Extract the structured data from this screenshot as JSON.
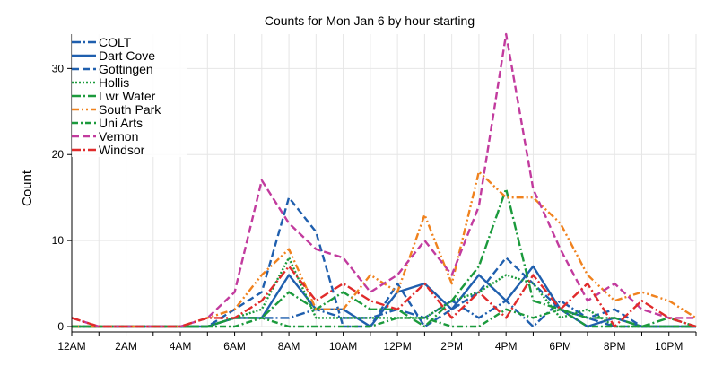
{
  "chart_data": {
    "type": "line",
    "title": "Counts for Mon Jan 6 by hour starting",
    "xlabel": "",
    "ylabel": "Count",
    "xlim": [
      0,
      23
    ],
    "ylim": [
      0,
      34
    ],
    "x_ticks": [
      0,
      2,
      4,
      6,
      8,
      10,
      12,
      14,
      16,
      18,
      20,
      22
    ],
    "x_tick_labels": [
      "12AM",
      "2AM",
      "4AM",
      "6AM",
      "8AM",
      "10AM",
      "12PM",
      "2PM",
      "4PM",
      "6PM",
      "8PM",
      "10PM"
    ],
    "y_ticks": [
      0,
      10,
      20,
      30
    ],
    "y_tick_labels": [
      "0",
      "10",
      "20",
      "30"
    ],
    "grid": true,
    "legend_position": "top-left",
    "x": [
      0,
      1,
      2,
      3,
      4,
      5,
      6,
      7,
      8,
      9,
      10,
      11,
      12,
      13,
      14,
      15,
      16,
      17,
      18,
      19,
      20,
      21,
      22,
      23
    ],
    "series": [
      {
        "name": "COLT",
        "color": "#1f5fae",
        "dash": "dashdot",
        "values": [
          0,
          0,
          0,
          0,
          0,
          0,
          1,
          1,
          1,
          2,
          1,
          1,
          2,
          1,
          3,
          1,
          3,
          0,
          3,
          1,
          0,
          0,
          0,
          0
        ]
      },
      {
        "name": "Dart Cove",
        "color": "#1f5fae",
        "dash": "solid",
        "values": [
          0,
          0,
          0,
          0,
          0,
          0,
          1,
          1,
          6,
          2,
          2,
          0,
          4,
          5,
          2,
          6,
          3,
          7,
          2,
          0,
          1,
          0,
          0,
          0
        ]
      },
      {
        "name": "Gottingen",
        "color": "#1f5fae",
        "dash": "dashed",
        "values": [
          0,
          0,
          0,
          0,
          0,
          0,
          2,
          4,
          15,
          11,
          0,
          0,
          5,
          0,
          2,
          4,
          8,
          5,
          2,
          1,
          2,
          0,
          0,
          0
        ]
      },
      {
        "name": "Hollis",
        "color": "#1b9a3c",
        "dash": "dotted",
        "values": [
          0,
          0,
          0,
          0,
          0,
          0,
          1,
          2,
          8,
          1,
          1,
          1,
          1,
          1,
          3,
          4,
          6,
          5,
          1,
          2,
          0,
          0,
          0,
          0
        ]
      },
      {
        "name": "Lwr Water",
        "color": "#1b9a3c",
        "dash": "dashdot",
        "values": [
          0,
          0,
          0,
          0,
          0,
          0,
          1,
          1,
          4,
          2,
          4,
          2,
          2,
          0,
          3,
          7,
          16,
          3,
          2,
          1,
          1,
          0,
          1,
          0
        ]
      },
      {
        "name": "South Park",
        "color": "#f0821e",
        "dash": "dashdotdot",
        "values": [
          0,
          0,
          0,
          0,
          0,
          1,
          2,
          6,
          9,
          2,
          2,
          6,
          4,
          13,
          5,
          18,
          15,
          15,
          12,
          6,
          3,
          4,
          3,
          1
        ]
      },
      {
        "name": "Uni Arts",
        "color": "#1b9a3c",
        "dash": "dashdot2",
        "values": [
          0,
          0,
          0,
          0,
          0,
          0,
          0,
          1,
          0,
          0,
          0,
          0,
          1,
          1,
          0,
          0,
          2,
          1,
          2,
          0,
          0,
          0,
          0,
          0
        ]
      },
      {
        "name": "Vernon",
        "color": "#c23b9e",
        "dash": "dashed",
        "values": [
          1,
          0,
          0,
          0,
          0,
          1,
          4,
          17,
          12,
          9,
          8,
          4,
          6,
          10,
          6,
          14,
          34,
          16,
          9,
          3,
          5,
          2,
          1,
          1
        ]
      },
      {
        "name": "Windsor",
        "color": "#e02b2b",
        "dash": "dashdot",
        "values": [
          1,
          0,
          0,
          0,
          0,
          1,
          1,
          3,
          7,
          3,
          5,
          3,
          2,
          5,
          1,
          4,
          1,
          6,
          2,
          5,
          0,
          3,
          1,
          0
        ]
      }
    ]
  }
}
